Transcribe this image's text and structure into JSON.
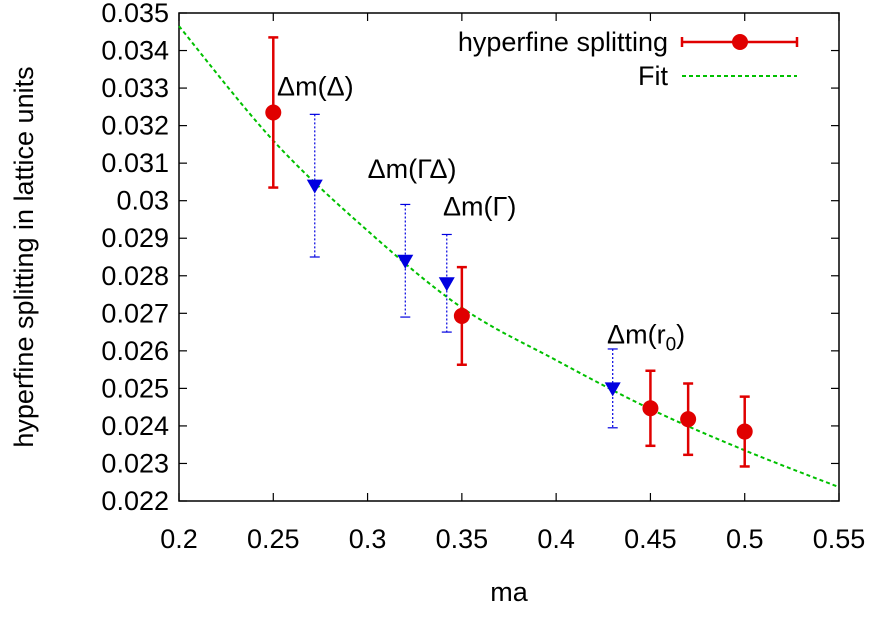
{
  "chart_data": {
    "type": "scatter",
    "title": "",
    "xlabel": "ma",
    "ylabel": "hyperfine splitting in lattice units",
    "xlim": [
      0.2,
      0.55
    ],
    "ylim": [
      0.022,
      0.035
    ],
    "xticks": [
      "0.2",
      "0.25",
      "0.3",
      "0.35",
      "0.4",
      "0.45",
      "0.5",
      "0.55"
    ],
    "yticks": [
      "0.022",
      "0.023",
      "0.024",
      "0.025",
      "0.026",
      "0.027",
      "0.028",
      "0.029",
      "0.03",
      "0.031",
      "0.032",
      "0.033",
      "0.034",
      "0.035"
    ],
    "grid": false,
    "legend_position": "top-right",
    "series": [
      {
        "name": "hyperfine splitting",
        "marker": "circle",
        "color": "#e00000",
        "x": [
          0.25,
          0.35,
          0.45,
          0.47,
          0.5
        ],
        "y": [
          0.03235,
          0.02693,
          0.02447,
          0.02418,
          0.02385
        ],
        "err": [
          0.002,
          0.0013,
          0.001,
          0.00095,
          0.00093
        ]
      },
      {
        "name": "",
        "marker": "triangle-down",
        "color": "#0000e0",
        "x": [
          0.272,
          0.32,
          0.342,
          0.43
        ],
        "y": [
          0.0304,
          0.0284,
          0.0278,
          0.025
        ],
        "err": [
          0.0019,
          0.0015,
          0.0013,
          0.00105
        ]
      },
      {
        "name": "Fit",
        "style": "dashed",
        "color": "#00c000",
        "x": [
          0.2,
          0.25,
          0.3,
          0.35,
          0.4,
          0.45,
          0.5,
          0.55
        ],
        "y": [
          0.03465,
          0.0316,
          0.0292,
          0.02715,
          0.02575,
          0.02445,
          0.02335,
          0.02237
        ]
      }
    ],
    "annotations": [
      {
        "text": "Δm(Δ)",
        "x": 0.252,
        "y": 0.0328
      },
      {
        "text": "Δm(ΓΔ)",
        "x": 0.3,
        "y": 0.0306
      },
      {
        "text": "Δm(Γ)",
        "x": 0.34,
        "y": 0.0296
      },
      {
        "text": "Δm(r",
        "sub": "0",
        "close": ")",
        "x": 0.427,
        "y": 0.0262
      }
    ]
  }
}
